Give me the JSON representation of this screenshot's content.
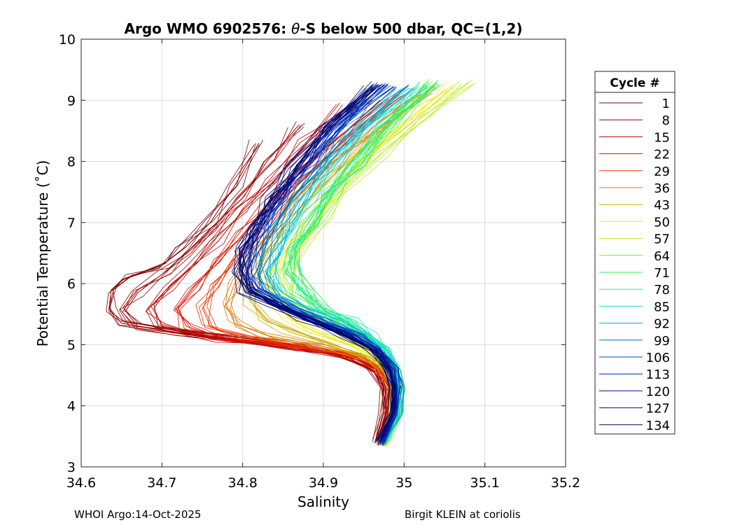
{
  "chart_data": {
    "type": "line",
    "title_prefix": "Argo WMO 6902576: ",
    "title_symbol": "θ",
    "title_suffix": "-S below 500 dbar,  QC=(1,2)",
    "xlabel": "Salinity",
    "ylabel": "Potential Temperature (˚C)",
    "xlim": [
      34.6,
      35.2
    ],
    "ylim": [
      3,
      10
    ],
    "xticks": [
      34.6,
      34.7,
      34.8,
      34.9,
      35,
      35.1,
      35.2
    ],
    "xtick_labels": [
      "34.6",
      "34.7",
      "34.8",
      "34.9",
      "35",
      "35.1",
      "35.2"
    ],
    "yticks": [
      3,
      4,
      5,
      6,
      7,
      8,
      9,
      10
    ],
    "ytick_labels": [
      "3",
      "4",
      "5",
      "6",
      "7",
      "8",
      "9",
      "10"
    ],
    "grid": true,
    "legend_title": "Cycle #",
    "legend_position": "right",
    "legend_entries": [
      "1",
      "8",
      "15",
      "22",
      "29",
      "36",
      "43",
      "50",
      "57",
      "64",
      "71",
      "78",
      "85",
      "92",
      "99",
      "106",
      "113",
      "120",
      "127",
      "134"
    ],
    "legend_colors": [
      "#800000",
      "#990000",
      "#bb0000",
      "#dd1100",
      "#ee3300",
      "#dd7700",
      "#ccaa00",
      "#eeee00",
      "#bbee22",
      "#77ee22",
      "#33ee55",
      "#22eeaa",
      "#11dddd",
      "#00aacc",
      "#0077aa",
      "#0044cc",
      "#0022bb",
      "#001599",
      "#000c77",
      "#000066"
    ],
    "series": [
      {
        "name": "1",
        "x": [
          34.965,
          34.975,
          34.975,
          34.96,
          34.92,
          34.85,
          34.72,
          34.65,
          34.635,
          34.64,
          34.66,
          34.7,
          34.73,
          34.76,
          34.79,
          34.82
        ],
        "y": [
          3.4,
          3.9,
          4.3,
          4.6,
          4.85,
          5.0,
          5.2,
          5.35,
          5.6,
          5.9,
          6.1,
          6.3,
          6.6,
          7.0,
          7.6,
          8.3
        ]
      },
      {
        "name": "8",
        "x": [
          34.968,
          34.978,
          34.978,
          34.965,
          34.93,
          34.86,
          34.74,
          34.67,
          34.655,
          34.67,
          34.7,
          34.73,
          34.76,
          34.8,
          34.83,
          34.87
        ],
        "y": [
          3.4,
          3.9,
          4.3,
          4.6,
          4.82,
          4.98,
          5.15,
          5.3,
          5.55,
          5.85,
          6.15,
          6.5,
          6.9,
          7.4,
          8.0,
          8.6
        ]
      },
      {
        "name": "15",
        "x": [
          34.97,
          34.98,
          34.98,
          34.968,
          34.93,
          34.86,
          34.76,
          34.7,
          34.69,
          34.71,
          34.74,
          34.77,
          34.8,
          34.84,
          34.88,
          34.93
        ],
        "y": [
          3.4,
          3.9,
          4.3,
          4.6,
          4.82,
          4.97,
          5.1,
          5.3,
          5.6,
          5.95,
          6.3,
          6.7,
          7.2,
          7.7,
          8.3,
          8.9
        ]
      },
      {
        "name": "22",
        "x": [
          34.97,
          34.983,
          34.983,
          34.97,
          34.94,
          34.87,
          34.78,
          34.73,
          34.72,
          34.74,
          34.77,
          34.8,
          34.83,
          34.87,
          34.92,
          34.97
        ],
        "y": [
          3.4,
          3.9,
          4.3,
          4.6,
          4.8,
          4.95,
          5.1,
          5.3,
          5.6,
          5.95,
          6.35,
          6.8,
          7.3,
          7.8,
          8.4,
          9.0
        ]
      },
      {
        "name": "29",
        "x": [
          34.972,
          34.985,
          34.985,
          34.972,
          34.94,
          34.88,
          34.8,
          34.76,
          34.75,
          34.77,
          34.79,
          34.82,
          34.85,
          34.89,
          34.94,
          35.0
        ],
        "y": [
          3.4,
          3.9,
          4.3,
          4.6,
          4.8,
          4.95,
          5.1,
          5.3,
          5.6,
          5.95,
          6.4,
          6.9,
          7.4,
          7.9,
          8.5,
          9.1
        ]
      },
      {
        "name": "36",
        "x": [
          34.973,
          34.986,
          34.986,
          34.975,
          34.95,
          34.9,
          34.83,
          34.79,
          34.78,
          34.79,
          34.81,
          34.84,
          34.87,
          34.91,
          34.96,
          35.02
        ],
        "y": [
          3.4,
          3.9,
          4.3,
          4.6,
          4.8,
          4.97,
          5.15,
          5.35,
          5.65,
          6.0,
          6.45,
          6.95,
          7.45,
          7.95,
          8.55,
          9.15
        ]
      },
      {
        "name": "43",
        "x": [
          34.974,
          34.987,
          34.987,
          34.978,
          34.955,
          34.91,
          34.86,
          34.83,
          34.81,
          34.81,
          34.83,
          34.86,
          34.89,
          34.93,
          34.98,
          35.04
        ],
        "y": [
          3.4,
          3.9,
          4.3,
          4.6,
          4.82,
          5.0,
          5.2,
          5.4,
          5.7,
          6.05,
          6.5,
          7.0,
          7.5,
          8.0,
          8.6,
          9.2
        ]
      },
      {
        "name": "50",
        "x": [
          34.975,
          34.988,
          34.988,
          34.98,
          34.96,
          34.93,
          34.89,
          34.86,
          34.84,
          34.83,
          34.85,
          34.88,
          34.91,
          34.95,
          35.0,
          35.06
        ],
        "y": [
          3.4,
          3.9,
          4.3,
          4.6,
          4.85,
          5.05,
          5.25,
          5.45,
          5.75,
          6.1,
          6.55,
          7.05,
          7.55,
          8.05,
          8.65,
          9.25
        ]
      },
      {
        "name": "57",
        "x": [
          34.975,
          34.99,
          34.99,
          34.983,
          34.965,
          34.94,
          34.91,
          34.88,
          34.86,
          34.85,
          34.87,
          34.9,
          34.93,
          34.97,
          35.02,
          35.08
        ],
        "y": [
          3.4,
          3.9,
          4.3,
          4.6,
          4.87,
          5.08,
          5.3,
          5.5,
          5.8,
          6.15,
          6.6,
          7.1,
          7.6,
          8.1,
          8.7,
          9.3
        ]
      },
      {
        "name": "64",
        "x": [
          34.976,
          34.991,
          34.992,
          34.986,
          34.97,
          34.95,
          34.92,
          34.89,
          34.87,
          34.86,
          34.87,
          34.89,
          34.91,
          34.94,
          34.98,
          35.03
        ],
        "y": [
          3.4,
          3.9,
          4.3,
          4.6,
          4.9,
          5.1,
          5.35,
          5.55,
          5.85,
          6.2,
          6.6,
          7.0,
          7.4,
          7.9,
          8.6,
          9.3
        ]
      },
      {
        "name": "71",
        "x": [
          34.976,
          34.992,
          34.993,
          34.988,
          34.975,
          34.955,
          34.93,
          34.9,
          34.88,
          34.87,
          34.87,
          34.89,
          34.91,
          34.94,
          34.98,
          35.04
        ],
        "y": [
          3.4,
          3.9,
          4.3,
          4.6,
          4.9,
          5.12,
          5.37,
          5.57,
          5.87,
          6.2,
          6.6,
          7.0,
          7.45,
          7.95,
          8.6,
          9.3
        ]
      },
      {
        "name": "78",
        "x": [
          34.976,
          34.993,
          34.995,
          34.992,
          34.98,
          34.96,
          34.935,
          34.9,
          34.87,
          34.86,
          34.86,
          34.88,
          34.9,
          34.93,
          34.97,
          35.03
        ],
        "y": [
          3.4,
          3.9,
          4.3,
          4.6,
          4.9,
          5.15,
          5.4,
          5.6,
          5.9,
          6.2,
          6.55,
          6.95,
          7.4,
          7.9,
          8.55,
          9.25
        ]
      },
      {
        "name": "85",
        "x": [
          34.975,
          34.992,
          34.994,
          34.99,
          34.978,
          34.955,
          34.92,
          34.88,
          34.85,
          34.84,
          34.845,
          34.86,
          34.88,
          34.91,
          34.95,
          35.01
        ],
        "y": [
          3.4,
          3.9,
          4.3,
          4.6,
          4.9,
          5.15,
          5.4,
          5.6,
          5.85,
          6.15,
          6.5,
          6.9,
          7.35,
          7.85,
          8.5,
          9.2
        ]
      },
      {
        "name": "92",
        "x": [
          34.974,
          34.991,
          34.993,
          34.988,
          34.975,
          34.95,
          34.91,
          34.87,
          34.84,
          34.83,
          34.835,
          34.85,
          34.87,
          34.9,
          34.94,
          35.0
        ],
        "y": [
          3.4,
          3.9,
          4.3,
          4.6,
          4.9,
          5.15,
          5.4,
          5.6,
          5.85,
          6.15,
          6.5,
          6.9,
          7.35,
          7.85,
          8.5,
          9.2
        ]
      },
      {
        "name": "99",
        "x": [
          34.973,
          34.99,
          34.992,
          34.987,
          34.972,
          34.945,
          34.9,
          34.86,
          34.83,
          34.82,
          34.825,
          34.84,
          34.86,
          34.89,
          34.93,
          34.99
        ],
        "y": [
          3.4,
          3.9,
          4.3,
          4.6,
          4.9,
          5.15,
          5.4,
          5.62,
          5.87,
          6.17,
          6.52,
          6.92,
          7.37,
          7.87,
          8.52,
          9.22
        ]
      },
      {
        "name": "106",
        "x": [
          34.972,
          34.989,
          34.991,
          34.985,
          34.97,
          34.94,
          34.89,
          34.85,
          34.82,
          34.81,
          34.815,
          34.83,
          34.85,
          34.88,
          34.92,
          34.98
        ],
        "y": [
          3.4,
          3.9,
          4.3,
          4.6,
          4.9,
          5.15,
          5.42,
          5.65,
          5.9,
          6.2,
          6.55,
          6.95,
          7.4,
          7.9,
          8.55,
          9.25
        ]
      },
      {
        "name": "113",
        "x": [
          34.971,
          34.988,
          34.99,
          34.984,
          34.968,
          34.935,
          34.885,
          34.845,
          34.815,
          34.805,
          34.81,
          34.825,
          34.845,
          34.875,
          34.915,
          34.975
        ],
        "y": [
          3.4,
          3.9,
          4.3,
          4.6,
          4.9,
          5.15,
          5.42,
          5.65,
          5.9,
          6.2,
          6.55,
          6.95,
          7.4,
          7.9,
          8.55,
          9.25
        ]
      },
      {
        "name": "120",
        "x": [
          34.97,
          34.987,
          34.989,
          34.983,
          34.966,
          34.93,
          34.88,
          34.84,
          34.81,
          34.8,
          34.805,
          34.82,
          34.84,
          34.87,
          34.91,
          34.97
        ],
        "y": [
          3.4,
          3.9,
          4.3,
          4.6,
          4.9,
          5.15,
          5.42,
          5.65,
          5.9,
          6.2,
          6.55,
          6.95,
          7.4,
          7.9,
          8.55,
          9.25
        ]
      },
      {
        "name": "127",
        "x": [
          34.97,
          34.986,
          34.988,
          34.982,
          34.964,
          34.928,
          34.878,
          34.838,
          34.808,
          34.798,
          34.803,
          34.818,
          34.838,
          34.868,
          34.908,
          34.968
        ],
        "y": [
          3.4,
          3.9,
          4.3,
          4.6,
          4.9,
          5.15,
          5.42,
          5.65,
          5.9,
          6.2,
          6.55,
          6.95,
          7.4,
          7.9,
          8.55,
          9.25
        ]
      },
      {
        "name": "134",
        "x": [
          34.969,
          34.985,
          34.987,
          34.981,
          34.962,
          34.925,
          34.875,
          34.835,
          34.805,
          34.795,
          34.8,
          34.815,
          34.835,
          34.865,
          34.905,
          34.965
        ],
        "y": [
          3.4,
          3.9,
          4.3,
          4.6,
          4.9,
          5.15,
          5.42,
          5.65,
          5.9,
          6.2,
          6.55,
          6.95,
          7.4,
          7.9,
          8.55,
          9.25
        ]
      }
    ]
  },
  "footer": {
    "left": "WHOI Argo:14-Oct-2025",
    "right": "Birgit KLEIN at coriolis"
  }
}
